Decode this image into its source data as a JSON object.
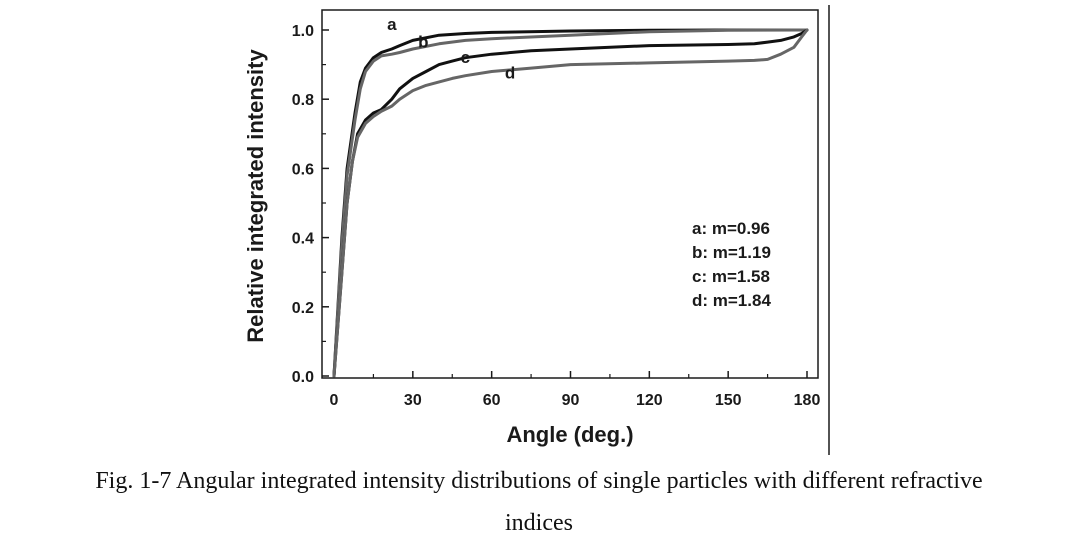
{
  "chart_data": {
    "type": "line",
    "xlabel": "Angle (deg.)",
    "ylabel": "Relative integrated intensity",
    "xlim": [
      0,
      180
    ],
    "ylim": [
      0,
      1.0
    ],
    "xticks": [
      0,
      30,
      60,
      90,
      120,
      150,
      180
    ],
    "yticks": [
      0.0,
      0.2,
      0.4,
      0.6,
      0.8,
      1.0
    ],
    "xtick_labels": [
      "0",
      "30",
      "60",
      "90",
      "120",
      "150",
      "180"
    ],
    "ytick_labels": [
      "0.0",
      "0.2",
      "0.4",
      "0.6",
      "0.8",
      "1.0"
    ],
    "grid": false,
    "legend_position": "right",
    "legend": [
      "a: m=0.96",
      "b: m=1.19",
      "c: m=1.58",
      "d: m=1.84"
    ],
    "series": [
      {
        "name": "a",
        "color": "#111111",
        "x": [
          0,
          3,
          5,
          8,
          10,
          12,
          15,
          18,
          22,
          25,
          30,
          40,
          50,
          60,
          90,
          120,
          150,
          180
        ],
        "y": [
          0,
          0.4,
          0.6,
          0.76,
          0.85,
          0.89,
          0.92,
          0.935,
          0.945,
          0.955,
          0.97,
          0.985,
          0.99,
          0.993,
          0.997,
          0.999,
          1.0,
          1.0
        ]
      },
      {
        "name": "b",
        "color": "#666666",
        "x": [
          0,
          3,
          5,
          8,
          10,
          12,
          15,
          18,
          22,
          25,
          30,
          40,
          50,
          60,
          90,
          120,
          150,
          180
        ],
        "y": [
          0,
          0.38,
          0.58,
          0.74,
          0.83,
          0.88,
          0.91,
          0.925,
          0.93,
          0.935,
          0.945,
          0.96,
          0.97,
          0.975,
          0.985,
          0.995,
          0.999,
          1.0
        ]
      },
      {
        "name": "c",
        "color": "#111111",
        "x": [
          0,
          3,
          5,
          7,
          9,
          12,
          15,
          18,
          22,
          25,
          30,
          35,
          40,
          45,
          50,
          60,
          75,
          90,
          120,
          150,
          160,
          165,
          170,
          175,
          178,
          180
        ],
        "y": [
          0,
          0.3,
          0.5,
          0.62,
          0.7,
          0.74,
          0.76,
          0.77,
          0.8,
          0.83,
          0.86,
          0.88,
          0.9,
          0.91,
          0.92,
          0.93,
          0.94,
          0.945,
          0.955,
          0.958,
          0.96,
          0.965,
          0.97,
          0.98,
          0.99,
          1.0
        ]
      },
      {
        "name": "d",
        "color": "#666666",
        "x": [
          0,
          3,
          5,
          7,
          9,
          12,
          15,
          18,
          22,
          25,
          30,
          35,
          40,
          45,
          50,
          60,
          75,
          90,
          120,
          150,
          160,
          165,
          170,
          175,
          178,
          180
        ],
        "y": [
          0,
          0.3,
          0.5,
          0.62,
          0.69,
          0.73,
          0.75,
          0.765,
          0.78,
          0.8,
          0.825,
          0.84,
          0.85,
          0.86,
          0.868,
          0.88,
          0.89,
          0.9,
          0.905,
          0.91,
          0.912,
          0.915,
          0.93,
          0.95,
          0.98,
          1.0
        ]
      }
    ],
    "curve_labels": [
      {
        "text": "a",
        "x": 22,
        "y": 1.0
      },
      {
        "text": "b",
        "x": 34,
        "y": 0.95
      },
      {
        "text": "c",
        "x": 50,
        "y": 0.905
      },
      {
        "text": "d",
        "x": 67,
        "y": 0.86
      }
    ]
  },
  "caption": {
    "line1": "Fig. 1-7 Angular integrated intensity distributions of single particles with different refractive",
    "line2": "indices"
  }
}
